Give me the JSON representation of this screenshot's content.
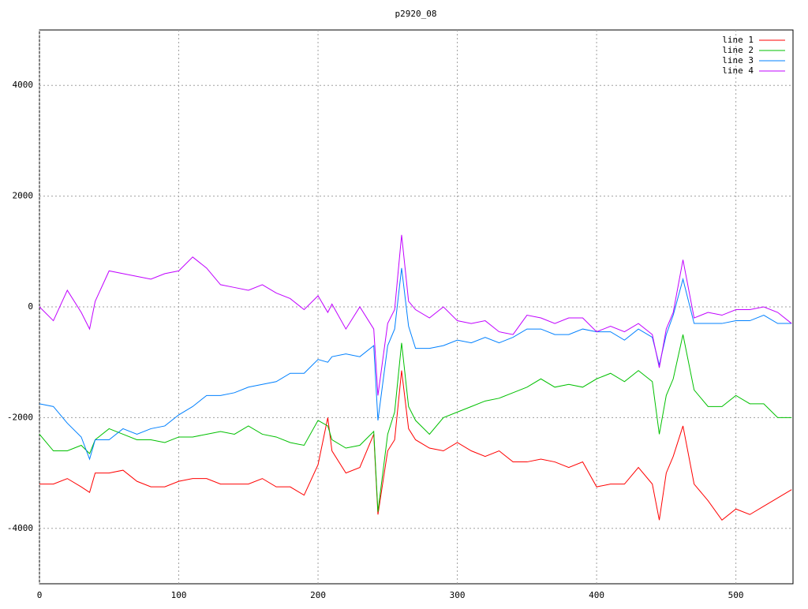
{
  "chart_data": {
    "type": "line",
    "title": "p2920_08",
    "x": [
      0,
      10,
      20,
      30,
      36,
      40,
      50,
      60,
      70,
      80,
      90,
      100,
      110,
      120,
      130,
      140,
      150,
      160,
      170,
      180,
      190,
      200,
      207,
      210,
      220,
      230,
      240,
      243,
      250,
      255,
      260,
      265,
      270,
      280,
      290,
      300,
      310,
      320,
      330,
      340,
      350,
      360,
      370,
      380,
      390,
      400,
      410,
      420,
      430,
      440,
      445,
      450,
      455,
      462,
      470,
      480,
      490,
      500,
      510,
      520,
      530,
      540
    ],
    "series": [
      {
        "name": "line 1",
        "color": "#ff0000",
        "values": [
          -3200,
          -3200,
          -3100,
          -3250,
          -3350,
          -3000,
          -3000,
          -2950,
          -3150,
          -3250,
          -3250,
          -3150,
          -3100,
          -3100,
          -3200,
          -3200,
          -3200,
          -3100,
          -3250,
          -3250,
          -3400,
          -2850,
          -2000,
          -2600,
          -3000,
          -2900,
          -2300,
          -3750,
          -2600,
          -2400,
          -1150,
          -2200,
          -2400,
          -2550,
          -2600,
          -2450,
          -2600,
          -2700,
          -2600,
          -2800,
          -2800,
          -2750,
          -2800,
          -2900,
          -2800,
          -3250,
          -3200,
          -3200,
          -2900,
          -3200,
          -3850,
          -3000,
          -2700,
          -2150,
          -3200,
          -3500,
          -3850,
          -3650,
          -3750,
          -3600,
          -3450,
          -3300
        ]
      },
      {
        "name": "line 2",
        "color": "#00c000",
        "values": [
          -2300,
          -2600,
          -2600,
          -2500,
          -2650,
          -2400,
          -2200,
          -2300,
          -2400,
          -2400,
          -2450,
          -2350,
          -2350,
          -2300,
          -2250,
          -2300,
          -2150,
          -2300,
          -2350,
          -2450,
          -2500,
          -2050,
          -2150,
          -2400,
          -2550,
          -2500,
          -2250,
          -3700,
          -2300,
          -1900,
          -650,
          -1800,
          -2050,
          -2300,
          -2000,
          -1900,
          -1800,
          -1700,
          -1650,
          -1550,
          -1450,
          -1300,
          -1450,
          -1400,
          -1450,
          -1300,
          -1200,
          -1350,
          -1150,
          -1350,
          -2300,
          -1600,
          -1300,
          -500,
          -1500,
          -1800,
          -1800,
          -1600,
          -1750,
          -1750,
          -2000,
          -2000
        ]
      },
      {
        "name": "line 3",
        "color": "#0080ff",
        "values": [
          -1750,
          -1800,
          -2100,
          -2350,
          -2750,
          -2400,
          -2400,
          -2200,
          -2300,
          -2200,
          -2150,
          -1950,
          -1800,
          -1600,
          -1600,
          -1550,
          -1450,
          -1400,
          -1350,
          -1200,
          -1200,
          -950,
          -1000,
          -900,
          -850,
          -900,
          -700,
          -2050,
          -700,
          -400,
          700,
          -350,
          -750,
          -750,
          -700,
          -600,
          -650,
          -550,
          -650,
          -550,
          -400,
          -400,
          -500,
          -500,
          -400,
          -450,
          -450,
          -600,
          -400,
          -550,
          -1050,
          -500,
          -150,
          500,
          -300,
          -300,
          -300,
          -250,
          -250,
          -150,
          -300,
          -300
        ]
      },
      {
        "name": "line 4",
        "color": "#c000ff",
        "values": [
          0,
          -250,
          300,
          -100,
          -400,
          100,
          650,
          600,
          550,
          500,
          600,
          650,
          900,
          700,
          400,
          350,
          300,
          400,
          250,
          150,
          -50,
          200,
          -100,
          50,
          -400,
          0,
          -400,
          -1600,
          -300,
          -50,
          1300,
          100,
          -50,
          -200,
          0,
          -250,
          -300,
          -250,
          -450,
          -500,
          -150,
          -200,
          -300,
          -200,
          -200,
          -450,
          -350,
          -450,
          -300,
          -500,
          -1100,
          -400,
          -100,
          850,
          -200,
          -100,
          -150,
          -50,
          -50,
          0,
          -100,
          -300
        ]
      }
    ],
    "xlim": [
      0,
      541
    ],
    "xticks": [
      0,
      100,
      200,
      300,
      400,
      500
    ],
    "ylim": [
      -5000,
      5000
    ],
    "yticks": [
      -4000,
      -2000,
      0,
      2000,
      4000
    ],
    "grid": true,
    "legend": "top-right"
  }
}
